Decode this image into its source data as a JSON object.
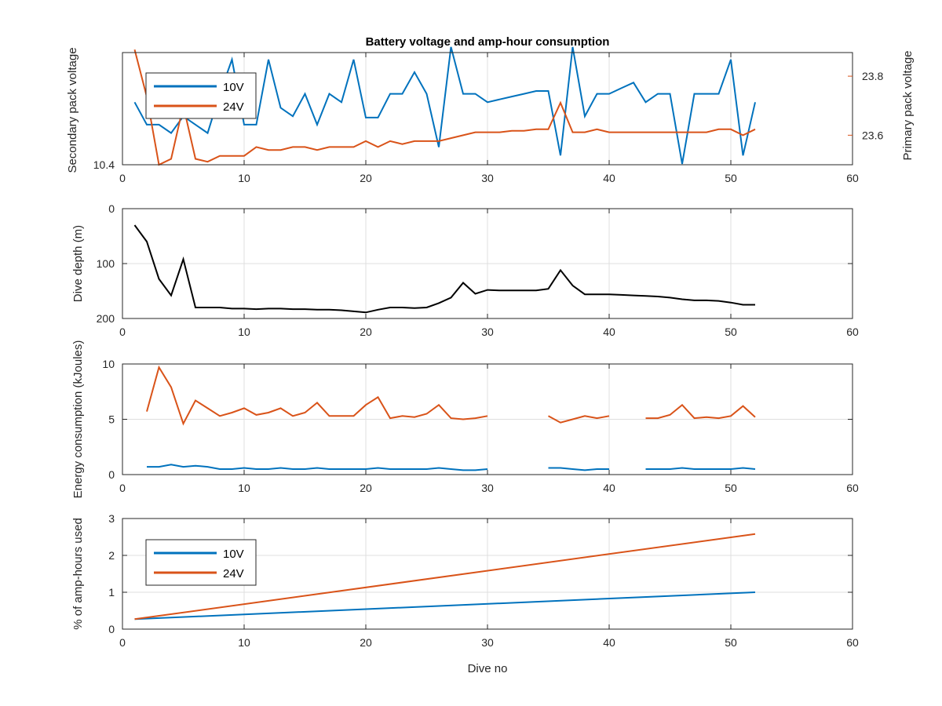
{
  "colors": {
    "blue": "#0072BD",
    "orange": "#D95319",
    "black": "#000000",
    "grid": "#DFDFDF",
    "axis": "#262626",
    "left_axis_text": "#0072BD",
    "right_axis_text": "#D95319"
  },
  "chart_data": [
    {
      "type": "line",
      "title": "Battery voltage and amp-hour consumption",
      "xlabel": "",
      "ylabel": "Secondary pack voltage",
      "ylabel_right": "Primary pack voltage",
      "xlim": [
        0,
        60
      ],
      "xticks": [
        0,
        10,
        20,
        30,
        40,
        50,
        60
      ],
      "ylim": [
        10.4,
        10.8
      ],
      "yticks": [
        10.4
      ],
      "ylim_right": [
        23.5,
        23.88
      ],
      "yticks_right": [
        23.6,
        23.8
      ],
      "grid": true,
      "legend": {
        "location": "top-left",
        "entries": [
          "10V",
          "24V"
        ]
      },
      "series": [
        {
          "name": "10V",
          "axis": "left",
          "color": "#0072BD",
          "x": [
            1,
            2,
            3,
            4,
            5,
            6,
            7,
            8,
            9,
            10,
            11,
            12,
            13,
            14,
            15,
            16,
            17,
            18,
            19,
            20,
            21,
            22,
            23,
            24,
            25,
            26,
            27,
            28,
            29,
            30,
            31,
            32,
            33,
            34,
            35,
            36,
            37,
            38,
            39,
            40,
            41,
            42,
            43,
            44,
            45,
            46,
            47,
            48,
            49,
            50,
            51,
            52
          ],
          "y": [
            10.623,
            10.543,
            10.543,
            10.513,
            10.573,
            10.543,
            10.513,
            10.653,
            10.775,
            10.543,
            10.543,
            10.775,
            10.603,
            10.573,
            10.653,
            10.543,
            10.653,
            10.623,
            10.775,
            10.568,
            10.568,
            10.653,
            10.653,
            10.73,
            10.653,
            10.463,
            10.82,
            10.653,
            10.653,
            10.623,
            10.633,
            10.643,
            10.653,
            10.663,
            10.663,
            10.433,
            10.82,
            10.573,
            10.653,
            10.653,
            10.673,
            10.693,
            10.623,
            10.653,
            10.653,
            10.403,
            10.653,
            10.653,
            10.653,
            10.775,
            10.433,
            10.623
          ]
        },
        {
          "name": "24V",
          "axis": "right",
          "color": "#D95319",
          "x": [
            1,
            2,
            3,
            4,
            5,
            6,
            7,
            8,
            9,
            10,
            11,
            12,
            13,
            14,
            15,
            16,
            17,
            18,
            19,
            20,
            21,
            22,
            23,
            24,
            25,
            26,
            27,
            28,
            29,
            30,
            31,
            32,
            33,
            34,
            35,
            36,
            37,
            38,
            39,
            40,
            41,
            42,
            43,
            44,
            45,
            46,
            47,
            48,
            49,
            50,
            51,
            52
          ],
          "y": [
            23.89,
            23.73,
            23.5,
            23.52,
            23.7,
            23.52,
            23.51,
            23.53,
            23.53,
            23.53,
            23.56,
            23.55,
            23.55,
            23.56,
            23.56,
            23.55,
            23.56,
            23.56,
            23.56,
            23.58,
            23.56,
            23.58,
            23.57,
            23.58,
            23.58,
            23.58,
            23.59,
            23.6,
            23.61,
            23.61,
            23.61,
            23.615,
            23.615,
            23.62,
            23.62,
            23.71,
            23.61,
            23.61,
            23.62,
            23.61,
            23.61,
            23.61,
            23.61,
            23.61,
            23.61,
            23.61,
            23.61,
            23.61,
            23.62,
            23.62,
            23.6,
            23.62
          ]
        }
      ]
    },
    {
      "type": "line",
      "title": "",
      "xlabel": "",
      "ylabel": "Dive depth (m)",
      "xlim": [
        0,
        60
      ],
      "xticks": [
        0,
        10,
        20,
        30,
        40,
        50,
        60
      ],
      "ylim": [
        0,
        200
      ],
      "y_reversed": true,
      "yticks": [
        0,
        100,
        200
      ],
      "grid": true,
      "series": [
        {
          "color": "#000000",
          "x": [
            1,
            2,
            3,
            4,
            5,
            6,
            7,
            8,
            9,
            10,
            11,
            12,
            13,
            14,
            15,
            16,
            17,
            18,
            19,
            20,
            21,
            22,
            23,
            24,
            25,
            26,
            27,
            28,
            29,
            30,
            31,
            32,
            33,
            34,
            35,
            36,
            37,
            38,
            39,
            40,
            41,
            42,
            43,
            44,
            45,
            46,
            47,
            48,
            49,
            50,
            51,
            52
          ],
          "y": [
            30,
            60,
            128,
            158,
            92,
            180,
            180,
            180,
            182,
            182,
            183,
            182,
            182,
            183,
            183,
            184,
            184,
            185,
            187,
            189,
            184,
            180,
            180,
            181,
            180,
            172,
            162,
            135,
            155,
            148,
            149,
            149,
            149,
            149,
            146,
            112,
            140,
            156,
            156,
            156,
            157,
            158,
            159,
            160,
            162,
            165,
            167,
            167,
            168,
            171,
            175,
            175
          ]
        }
      ]
    },
    {
      "type": "line",
      "title": "",
      "xlabel": "",
      "ylabel": "Energy consumption (kJoules)",
      "xlim": [
        0,
        60
      ],
      "xticks": [
        0,
        10,
        20,
        30,
        40,
        50,
        60
      ],
      "ylim": [
        0,
        10
      ],
      "yticks": [
        0,
        5,
        10
      ],
      "grid": true,
      "series": [
        {
          "color": "#D95319",
          "segments": [
            {
              "x": [
                2,
                3,
                4,
                5,
                6,
                7,
                8,
                9,
                10,
                11,
                12,
                13,
                14,
                15,
                16,
                17,
                18,
                19,
                20,
                21,
                22,
                23,
                24,
                25,
                26,
                27,
                28,
                29,
                30
              ],
              "y": [
                5.7,
                9.7,
                7.9,
                4.6,
                6.7,
                6.0,
                5.3,
                5.6,
                6.0,
                5.4,
                5.6,
                6.0,
                5.3,
                5.6,
                6.5,
                5.3,
                5.3,
                5.3,
                6.3,
                7.0,
                5.1,
                5.3,
                5.2,
                5.5,
                6.3,
                5.1,
                5.0,
                5.1,
                5.3
              ]
            },
            {
              "x": [
                35,
                36,
                37,
                38,
                39,
                40
              ],
              "y": [
                5.3,
                4.7,
                5.0,
                5.3,
                5.1,
                5.3
              ]
            },
            {
              "x": [
                43,
                44,
                45,
                46,
                47,
                48,
                49,
                50,
                51,
                52
              ],
              "y": [
                5.1,
                5.1,
                5.4,
                6.3,
                5.1,
                5.2,
                5.1,
                5.3,
                6.2,
                5.2
              ]
            }
          ]
        },
        {
          "color": "#0072BD",
          "segments": [
            {
              "x": [
                2,
                3,
                4,
                5,
                6,
                7,
                8,
                9,
                10,
                11,
                12,
                13,
                14,
                15,
                16,
                17,
                18,
                19,
                20,
                21,
                22,
                23,
                24,
                25,
                26,
                27,
                28,
                29,
                30
              ],
              "y": [
                0.7,
                0.7,
                0.9,
                0.7,
                0.8,
                0.7,
                0.5,
                0.5,
                0.6,
                0.5,
                0.5,
                0.6,
                0.5,
                0.5,
                0.6,
                0.5,
                0.5,
                0.5,
                0.5,
                0.6,
                0.5,
                0.5,
                0.5,
                0.5,
                0.6,
                0.5,
                0.4,
                0.4,
                0.5
              ]
            },
            {
              "x": [
                35,
                36,
                37,
                38,
                39,
                40
              ],
              "y": [
                0.6,
                0.6,
                0.5,
                0.4,
                0.5,
                0.5
              ]
            },
            {
              "x": [
                43,
                44,
                45,
                46,
                47,
                48,
                49,
                50,
                51,
                52
              ],
              "y": [
                0.5,
                0.5,
                0.5,
                0.6,
                0.5,
                0.5,
                0.5,
                0.5,
                0.6,
                0.5
              ]
            }
          ]
        }
      ]
    },
    {
      "type": "line",
      "title": "",
      "xlabel": "Dive no",
      "ylabel": "% of amp-hours used",
      "xlim": [
        0,
        60
      ],
      "xticks": [
        0,
        10,
        20,
        30,
        40,
        50,
        60
      ],
      "ylim": [
        0,
        3
      ],
      "yticks": [
        0,
        1,
        2,
        3
      ],
      "grid": true,
      "legend": {
        "location": "top-left",
        "entries": [
          "10V",
          "24V"
        ]
      },
      "series": [
        {
          "name": "10V",
          "color": "#0072BD",
          "x": [
            1,
            52
          ],
          "y": [
            0.27,
            1.0
          ]
        },
        {
          "name": "24V",
          "color": "#D95319",
          "x": [
            1,
            52
          ],
          "y": [
            0.27,
            2.58
          ]
        }
      ]
    }
  ]
}
